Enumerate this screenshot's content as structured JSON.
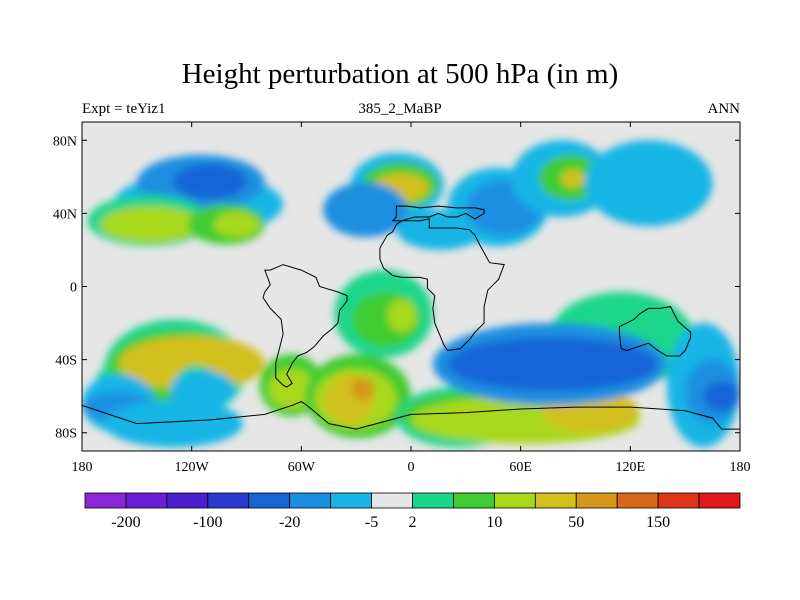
{
  "chart_data": {
    "type": "heatmap",
    "title": "Height perturbation at 500 hPa (in m)",
    "subtitle_left": "Expt = teYiz1",
    "subtitle_center": "385_2_MaBP",
    "subtitle_right": "ANN",
    "xlim": [
      -180,
      180
    ],
    "ylim": [
      -90,
      90
    ],
    "x_ticks": [
      {
        "value": -180,
        "label": "180"
      },
      {
        "value": -120,
        "label": "120W"
      },
      {
        "value": -60,
        "label": "60W"
      },
      {
        "value": 0,
        "label": "0"
      },
      {
        "value": 60,
        "label": "60E"
      },
      {
        "value": 120,
        "label": "120E"
      },
      {
        "value": 180,
        "label": "180"
      }
    ],
    "y_ticks": [
      {
        "value": 80,
        "label": "80N"
      },
      {
        "value": 40,
        "label": "40N"
      },
      {
        "value": 0,
        "label": "0"
      },
      {
        "value": -40,
        "label": "40S"
      },
      {
        "value": -80,
        "label": "80S"
      }
    ],
    "colorbar": {
      "colors": [
        "#8c26d9",
        "#6a1fd6",
        "#4a1fd0",
        "#2a38cf",
        "#1565d6",
        "#1a8fe0",
        "#19b5e6",
        "#e6e6e6",
        "#1ad68c",
        "#3fcc33",
        "#a8d81a",
        "#d1c01a",
        "#d6961a",
        "#d9661a",
        "#e0341a",
        "#e01a1a"
      ],
      "labels": [
        {
          "after_box": 1,
          "text": "-200"
        },
        {
          "after_box": 3,
          "text": "-100"
        },
        {
          "after_box": 5,
          "text": "-20"
        },
        {
          "after_box": 7,
          "text": "-5"
        },
        {
          "after_box": 8,
          "text": "2"
        },
        {
          "after_box": 10,
          "text": "10"
        },
        {
          "after_box": 12,
          "text": "50"
        },
        {
          "after_box": 14,
          "text": "150"
        }
      ]
    },
    "level_colors": {
      "-4": "#1565d6",
      "-3": "#1a8fe0",
      "-2": "#19b5e6",
      "-1": "#e6e6e6",
      "0": "#1ad68c",
      "1": "#3fcc33",
      "2": "#a8d81a",
      "3": "#d1c01a",
      "4": "#d6961a"
    },
    "background_color": "#e6e6e6",
    "cells": [
      {
        "lon": [
          -172,
          -95
        ],
        "lat": [
          -38,
          -62
        ],
        "level": 0
      },
      {
        "lon": [
          -163,
          -70
        ],
        "lat": [
          62,
          28
        ],
        "level": -2
      },
      {
        "lon": [
          -150,
          -80
        ],
        "lat": [
          72,
          42
        ],
        "level": -3
      },
      {
        "lon": [
          -130,
          -90
        ],
        "lat": [
          67,
          48
        ],
        "level": -4
      },
      {
        "lon": [
          -177,
          -110
        ],
        "lat": [
          50,
          22
        ],
        "level": 0
      },
      {
        "lon": [
          -170,
          -115
        ],
        "lat": [
          44,
          24
        ],
        "level": 2
      },
      {
        "lon": [
          -122,
          -80
        ],
        "lat": [
          45,
          23
        ],
        "level": 1
      },
      {
        "lon": [
          -108,
          -83
        ],
        "lat": [
          41,
          27
        ],
        "level": 2
      },
      {
        "lon": [
          -33,
          18
        ],
        "lat": [
          73,
          38
        ],
        "level": -2
      },
      {
        "lon": [
          -27,
          15
        ],
        "lat": [
          68,
          43
        ],
        "level": 1
      },
      {
        "lon": [
          -21,
          10
        ],
        "lat": [
          62,
          46
        ],
        "level": 3
      },
      {
        "lon": [
          -48,
          -2
        ],
        "lat": [
          57,
          27
        ],
        "level": -3
      },
      {
        "lon": [
          -8,
          40
        ],
        "lat": [
          42,
          20
        ],
        "level": -2
      },
      {
        "lon": [
          20,
          75
        ],
        "lat": [
          65,
          22
        ],
        "level": -2
      },
      {
        "lon": [
          30,
          72
        ],
        "lat": [
          58,
          28
        ],
        "level": -3
      },
      {
        "lon": [
          55,
          110
        ],
        "lat": [
          80,
          38
        ],
        "level": -2
      },
      {
        "lon": [
          70,
          105
        ],
        "lat": [
          72,
          47
        ],
        "level": 1
      },
      {
        "lon": [
          82,
          95
        ],
        "lat": [
          64,
          54
        ],
        "level": 3
      },
      {
        "lon": [
          95,
          165
        ],
        "lat": [
          80,
          33
        ],
        "level": -2
      },
      {
        "lon": [
          -42,
          12
        ],
        "lat": [
          9,
          -39
        ],
        "level": 0
      },
      {
        "lon": [
          -32,
          5
        ],
        "lat": [
          -3,
          -33
        ],
        "level": 1
      },
      {
        "lon": [
          -13,
          3
        ],
        "lat": [
          -7,
          -25
        ],
        "level": 2
      },
      {
        "lon": [
          75,
          155
        ],
        "lat": [
          -3,
          -55
        ],
        "level": 0
      },
      {
        "lon": [
          -168,
          -90
        ],
        "lat": [
          -18,
          -73
        ],
        "level": 0
      },
      {
        "lon": [
          -165,
          -90
        ],
        "lat": [
          -24,
          -63
        ],
        "level": 1
      },
      {
        "lon": [
          -160,
          -80
        ],
        "lat": [
          -27,
          -57
        ],
        "level": 3
      },
      {
        "lon": [
          -130,
          -105
        ],
        "lat": [
          -43,
          -67
        ],
        "level": 0
      },
      {
        "lon": [
          -132,
          -96
        ],
        "lat": [
          -46,
          -67
        ],
        "level": -2
      },
      {
        "lon": [
          -83,
          -48
        ],
        "lat": [
          -37,
          -71
        ],
        "level": 1
      },
      {
        "lon": [
          -78,
          -52
        ],
        "lat": [
          -45,
          -67
        ],
        "level": 2
      },
      {
        "lon": [
          -58,
          0
        ],
        "lat": [
          -37,
          -83
        ],
        "level": 1
      },
      {
        "lon": [
          -53,
          -8
        ],
        "lat": [
          -45,
          -78
        ],
        "level": 2
      },
      {
        "lon": [
          -47,
          -20
        ],
        "lat": [
          -48,
          -75
        ],
        "level": 3
      },
      {
        "lon": [
          -33,
          -20
        ],
        "lat": [
          -50,
          -62
        ],
        "level": 4
      },
      {
        "lon": [
          -8,
          60
        ],
        "lat": [
          -55,
          -88
        ],
        "level": 0
      },
      {
        "lon": [
          -5,
          75
        ],
        "lat": [
          -58,
          -84
        ],
        "level": 1
      },
      {
        "lon": [
          0,
          125
        ],
        "lat": [
          -60,
          -86
        ],
        "level": 2
      },
      {
        "lon": [
          72,
          125
        ],
        "lat": [
          -57,
          -80
        ],
        "level": 3
      },
      {
        "lon": [
          12,
          140
        ],
        "lat": [
          -20,
          -65
        ],
        "level": -3
      },
      {
        "lon": [
          20,
          135
        ],
        "lat": [
          -28,
          -57
        ],
        "level": -4
      },
      {
        "lon": [
          140,
          180
        ],
        "lat": [
          -20,
          -88
        ],
        "level": -2
      },
      {
        "lon": [
          150,
          180
        ],
        "lat": [
          -40,
          -75
        ],
        "level": -3
      },
      {
        "lon": [
          160,
          180
        ],
        "lat": [
          -52,
          -68
        ],
        "level": -4
      },
      {
        "lon": [
          -180,
          -140
        ],
        "lat": [
          -48,
          -80
        ],
        "level": -2
      },
      {
        "lon": [
          -180,
          -140
        ],
        "lat": [
          -58,
          -74
        ],
        "level": -3
      },
      {
        "lon": [
          -168,
          -92
        ],
        "lat": [
          -62,
          -88
        ],
        "level": -2
      }
    ],
    "land_outlines": [
      [
        [
          -8,
          42
        ],
        [
          -8,
          38
        ],
        [
          -10,
          36
        ],
        [
          -5,
          36
        ],
        [
          2,
          38
        ],
        [
          10,
          38
        ],
        [
          15,
          40
        ],
        [
          20,
          38
        ],
        [
          25,
          38
        ],
        [
          30,
          40
        ],
        [
          35,
          37
        ],
        [
          40,
          40
        ],
        [
          40,
          42
        ],
        [
          35,
          43
        ],
        [
          25,
          43
        ],
        [
          15,
          44
        ],
        [
          5,
          43
        ],
        [
          -2,
          44
        ],
        [
          -8,
          44
        ]
      ],
      [
        [
          -5,
          36
        ],
        [
          5,
          36
        ],
        [
          10,
          37
        ],
        [
          10,
          32
        ],
        [
          25,
          32
        ],
        [
          32,
          31
        ],
        [
          35,
          28
        ],
        [
          38,
          22
        ],
        [
          43,
          13
        ],
        [
          51,
          12
        ],
        [
          48,
          4
        ],
        [
          42,
          -2
        ],
        [
          40,
          -11
        ],
        [
          40,
          -20
        ],
        [
          35,
          -25
        ],
        [
          32,
          -29
        ],
        [
          27,
          -34
        ],
        [
          20,
          -35
        ],
        [
          18,
          -32
        ],
        [
          16,
          -27
        ],
        [
          13,
          -20
        ],
        [
          12,
          -12
        ],
        [
          13,
          -5
        ],
        [
          9,
          -1
        ],
        [
          9,
          4
        ],
        [
          5,
          5
        ],
        [
          -5,
          5
        ],
        [
          -10,
          6
        ],
        [
          -15,
          10
        ],
        [
          -17,
          15
        ],
        [
          -17,
          21
        ],
        [
          -13,
          28
        ],
        [
          -10,
          30
        ],
        [
          -8,
          34
        ]
      ],
      [
        [
          -80,
          9
        ],
        [
          -77,
          1
        ],
        [
          -80,
          -3
        ],
        [
          -81,
          -6
        ],
        [
          -77,
          -12
        ],
        [
          -71,
          -18
        ],
        [
          -70,
          -26
        ],
        [
          -72,
          -34
        ],
        [
          -74,
          -42
        ],
        [
          -74,
          -50
        ],
        [
          -70,
          -54
        ],
        [
          -68,
          -55
        ],
        [
          -65,
          -53
        ],
        [
          -68,
          -48
        ],
        [
          -65,
          -42
        ],
        [
          -62,
          -38
        ],
        [
          -57,
          -36
        ],
        [
          -53,
          -33
        ],
        [
          -48,
          -27
        ],
        [
          -43,
          -23
        ],
        [
          -40,
          -20
        ],
        [
          -39,
          -13
        ],
        [
          -35,
          -8
        ],
        [
          -35,
          -5
        ],
        [
          -40,
          -3
        ],
        [
          -50,
          0
        ],
        [
          -52,
          5
        ],
        [
          -60,
          9
        ],
        [
          -70,
          12
        ],
        [
          -77,
          9
        ]
      ],
      [
        [
          140,
          -38
        ],
        [
          147,
          -38
        ],
        [
          150,
          -35
        ],
        [
          153,
          -28
        ],
        [
          153,
          -25
        ],
        [
          146,
          -19
        ],
        [
          142,
          -11
        ],
        [
          136,
          -12
        ],
        [
          130,
          -12
        ],
        [
          125,
          -15
        ],
        [
          122,
          -18
        ],
        [
          114,
          -22
        ],
        [
          114,
          -26
        ],
        [
          115,
          -34
        ],
        [
          118,
          -35
        ],
        [
          124,
          -33
        ],
        [
          130,
          -31
        ],
        [
          135,
          -35
        ]
      ],
      [
        [
          -180,
          -65
        ],
        [
          -150,
          -75
        ],
        [
          -110,
          -73
        ],
        [
          -80,
          -70
        ],
        [
          -65,
          -65
        ],
        [
          -60,
          -63
        ],
        [
          -57,
          -65
        ],
        [
          -45,
          -75
        ],
        [
          -30,
          -78
        ],
        [
          0,
          -70
        ],
        [
          30,
          -69
        ],
        [
          60,
          -67
        ],
        [
          90,
          -66
        ],
        [
          120,
          -66
        ],
        [
          150,
          -68
        ],
        [
          165,
          -72
        ],
        [
          170,
          -78
        ],
        [
          180,
          -78
        ],
        [
          180,
          -90
        ],
        [
          -180,
          -90
        ]
      ]
    ]
  }
}
